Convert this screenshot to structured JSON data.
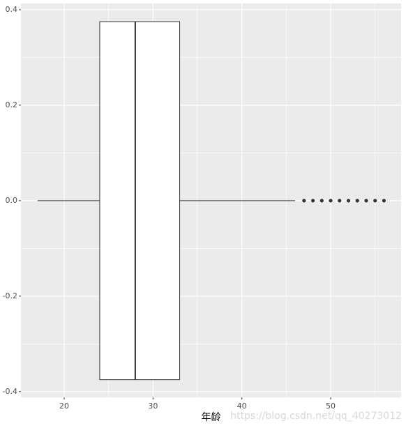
{
  "chart_data": {
    "type": "boxplot",
    "x_label": "年龄",
    "watermark": "https://blog.csdn.net/qq_40273012",
    "whisker_low": 17,
    "q1": 24,
    "median": 28,
    "q3": 33,
    "whisker_high": 46,
    "outliers": [
      47,
      48,
      49,
      50,
      51,
      52,
      53,
      54,
      55,
      56
    ],
    "box_extent": [
      -0.375,
      0.375
    ],
    "xlim": [
      15.13,
      57.93
    ],
    "xticks": [
      20,
      30,
      40,
      50
    ],
    "minor_xticks": [
      25,
      35,
      45,
      55
    ],
    "ylim": [
      -0.412,
      0.413
    ],
    "yticks": [
      -0.4,
      -0.2,
      {
        "value": 0,
        "label": "0.0"
      },
      0.2,
      0.4
    ],
    "minor_yticks": [
      -0.3,
      -0.1,
      0.1,
      0.3
    ],
    "grid": true,
    "panel_color": "#ebebeb",
    "box_fill": "#ffffff",
    "line_color": "#333333"
  }
}
